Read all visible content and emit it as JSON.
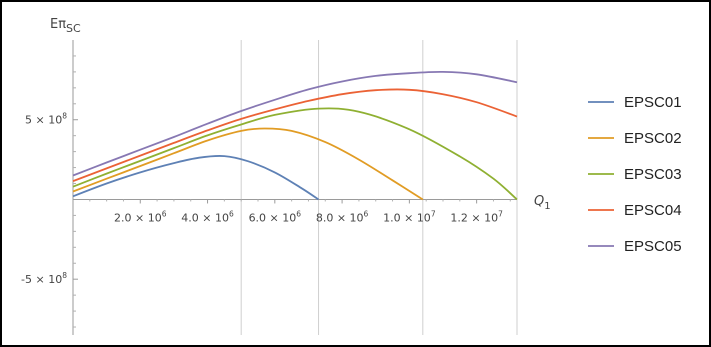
{
  "chart_data": {
    "type": "line",
    "ylabel": {
      "main": "Eπ",
      "sub": "SC"
    },
    "xlabel": {
      "main": "Q",
      "sub": "1"
    },
    "xlim": [
      0,
      13200000
    ],
    "ylim": [
      -850000000,
      1000000000
    ],
    "x_ticks": [
      {
        "value": 2000000,
        "mant": "2.0",
        "exp": "6"
      },
      {
        "value": 4000000,
        "mant": "4.0",
        "exp": "6"
      },
      {
        "value": 6000000,
        "mant": "6.0",
        "exp": "6"
      },
      {
        "value": 8000000,
        "mant": "8.0",
        "exp": "6"
      },
      {
        "value": 10000000,
        "mant": "1.0",
        "exp": "7"
      },
      {
        "value": 12000000,
        "mant": "1.2",
        "exp": "7"
      }
    ],
    "y_ticks": [
      {
        "value": 500000000,
        "mant": "5",
        "exp": "8"
      },
      {
        "value": -500000000,
        "mant": "-5",
        "exp": "8"
      }
    ],
    "gridlines_x": [
      5000000,
      7300000,
      10400000,
      13200000
    ],
    "legend_position": "right",
    "series": [
      {
        "name": "EPSC01",
        "color": "#5e81b5",
        "x": [
          0,
          1000000,
          2000000,
          3000000,
          3750000,
          4500000,
          5200000,
          6000000,
          6800000,
          7300000
        ],
        "y": [
          20000000,
          100000000,
          170000000,
          228000000,
          262000000,
          272000000,
          240000000,
          170000000,
          70000000,
          0
        ]
      },
      {
        "name": "EPSC02",
        "color": "#e19c24",
        "x": [
          0,
          1000000,
          2000000,
          3000000,
          4000000,
          5000000,
          5700000,
          6500000,
          7500000,
          8500000,
          9500000,
          10400000
        ],
        "y": [
          50000000,
          130000000,
          210000000,
          290000000,
          370000000,
          430000000,
          445000000,
          430000000,
          360000000,
          250000000,
          120000000,
          0
        ]
      },
      {
        "name": "EPSC03",
        "color": "#8fb032",
        "x": [
          0,
          1000000,
          2000000,
          3000000,
          4000000,
          5000000,
          6000000,
          7300000,
          8500000,
          10000000,
          11500000,
          12500000,
          13200000
        ],
        "y": [
          80000000,
          162000000,
          242000000,
          322000000,
          402000000,
          470000000,
          530000000,
          570000000,
          550000000,
          440000000,
          270000000,
          130000000,
          0
        ]
      },
      {
        "name": "EPSC04",
        "color": "#eb6235",
        "x": [
          0,
          1000000,
          2000000,
          3000000,
          4000000,
          5000000,
          6000000,
          7000000,
          8000000,
          9000000,
          10000000,
          11000000,
          12000000,
          13200000
        ],
        "y": [
          115000000,
          195000000,
          275000000,
          355000000,
          433000000,
          505000000,
          565000000,
          618000000,
          660000000,
          685000000,
          688000000,
          660000000,
          610000000,
          520000000
        ]
      },
      {
        "name": "EPSC05",
        "color": "#8778b3",
        "x": [
          0,
          1000000,
          2000000,
          3000000,
          4000000,
          5000000,
          6000000,
          7000000,
          8000000,
          9000000,
          10000000,
          11000000,
          12000000,
          13200000
        ],
        "y": [
          150000000,
          232000000,
          312000000,
          392000000,
          475000000,
          555000000,
          625000000,
          690000000,
          740000000,
          775000000,
          792000000,
          800000000,
          785000000,
          735000000
        ]
      }
    ]
  }
}
